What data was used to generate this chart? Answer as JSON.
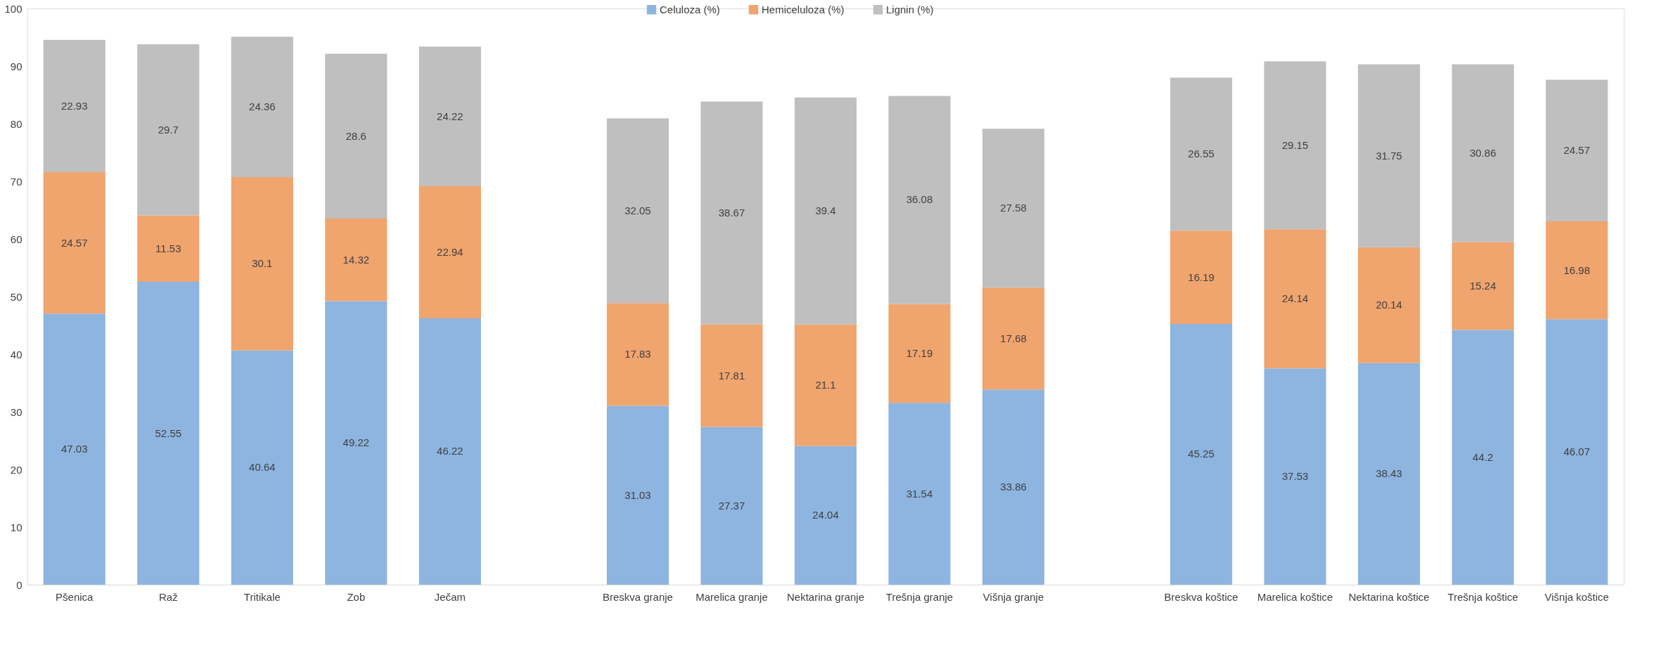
{
  "chart_data": {
    "type": "bar",
    "stacked": true,
    "categories": [
      "Pšenica",
      "Raž",
      "Tritikale",
      "Zob",
      "Ječam",
      null,
      "Breskva granje",
      "Marelica granje",
      "Nektarina granje",
      "Trešnja granje",
      "Višnja granje",
      null,
      "Breskva koštice",
      "Marelica koštice",
      "Nektarina koštice",
      "Trešnja koštice",
      "Višnja koštice"
    ],
    "series": [
      {
        "name": "Celuloza (%)",
        "color": "#8db5e0",
        "values": [
          47.03,
          52.55,
          40.64,
          49.22,
          46.22,
          null,
          31.03,
          27.37,
          24.04,
          31.54,
          33.86,
          null,
          45.25,
          37.53,
          38.43,
          44.2,
          46.07
        ]
      },
      {
        "name": "Hemiceluloza (%)",
        "color": "#f0a46e",
        "values": [
          24.57,
          11.53,
          30.1,
          14.32,
          22.94,
          null,
          17.83,
          17.81,
          21.1,
          17.19,
          17.68,
          null,
          16.19,
          24.14,
          20.14,
          15.24,
          16.98
        ]
      },
      {
        "name": "Lignin (%)",
        "color": "#bfbfbf",
        "values": [
          22.93,
          29.7,
          24.36,
          28.6,
          24.22,
          null,
          32.05,
          38.67,
          39.4,
          36.08,
          27.58,
          null,
          26.55,
          29.15,
          31.75,
          30.86,
          24.57
        ]
      }
    ],
    "ylim": [
      0,
      100
    ],
    "yticks": [
      0,
      10,
      20,
      30,
      40,
      50,
      60,
      70,
      80,
      90,
      100
    ],
    "grid": false,
    "legend": "top",
    "data_labels": true
  }
}
